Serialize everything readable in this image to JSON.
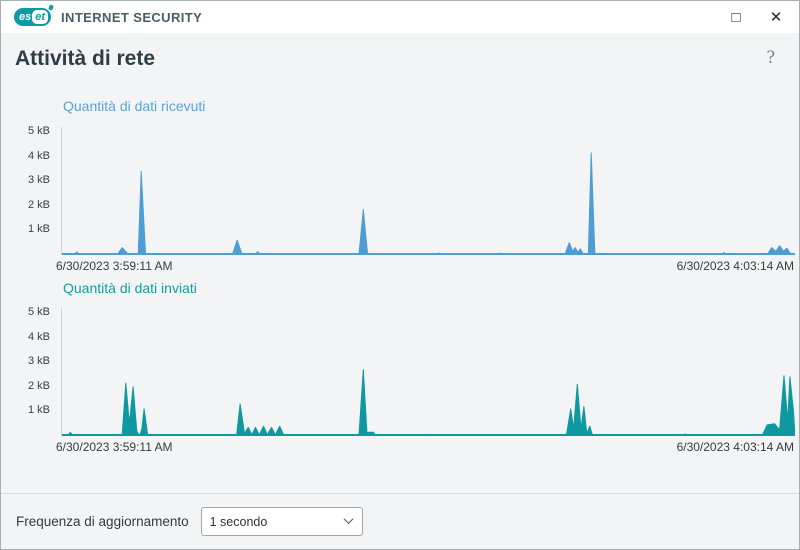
{
  "window": {
    "brand_es": "es",
    "brand_et": "et",
    "product": "INTERNET SECURITY",
    "controls": {
      "maximize": "□",
      "close": "✕"
    }
  },
  "header": {
    "title": "Attività di rete",
    "help": "?"
  },
  "chart_data": [
    {
      "type": "area",
      "title": "Quantità di dati ricevuti",
      "color": "#4e9dd3",
      "title_color": "#57a3d6",
      "unit": "kB",
      "ylim": [
        0,
        5.2
      ],
      "yticks": [
        "1 kB",
        "2 kB",
        "3 kB",
        "4 kB",
        "5 kB"
      ],
      "x_start": "6/30/2023 3:59:11 AM",
      "x_end": "6/30/2023 4:03:14 AM",
      "points": [
        [
          0,
          0
        ],
        [
          0.016,
          0
        ],
        [
          0.02,
          0.12
        ],
        [
          0.025,
          0
        ],
        [
          0.075,
          0
        ],
        [
          0.082,
          0.3
        ],
        [
          0.09,
          0.05
        ],
        [
          0.1,
          0
        ],
        [
          0.104,
          0
        ],
        [
          0.108,
          3.4
        ],
        [
          0.114,
          0
        ],
        [
          0.232,
          0
        ],
        [
          0.239,
          0.6
        ],
        [
          0.246,
          0
        ],
        [
          0.262,
          0
        ],
        [
          0.267,
          0.13
        ],
        [
          0.272,
          0
        ],
        [
          0.405,
          0
        ],
        [
          0.411,
          1.85
        ],
        [
          0.417,
          0
        ],
        [
          0.51,
          0
        ],
        [
          0.514,
          0.08
        ],
        [
          0.52,
          0
        ],
        [
          0.594,
          0
        ],
        [
          0.598,
          0.08
        ],
        [
          0.603,
          0
        ],
        [
          0.686,
          0
        ],
        [
          0.692,
          0.5
        ],
        [
          0.697,
          0.15
        ],
        [
          0.7,
          0.3
        ],
        [
          0.704,
          0.1
        ],
        [
          0.707,
          0.25
        ],
        [
          0.712,
          0
        ],
        [
          0.718,
          0
        ],
        [
          0.722,
          4.15
        ],
        [
          0.727,
          0
        ],
        [
          0.9,
          0
        ],
        [
          0.903,
          0.1
        ],
        [
          0.907,
          0
        ],
        [
          0.962,
          0
        ],
        [
          0.968,
          0.3
        ],
        [
          0.974,
          0.15
        ],
        [
          0.979,
          0.38
        ],
        [
          0.984,
          0.15
        ],
        [
          0.989,
          0.28
        ],
        [
          0.995,
          0
        ],
        [
          1,
          0
        ]
      ]
    },
    {
      "type": "area",
      "title": "Quantità di dati inviati",
      "color": "#0f98a0",
      "title_color": "#169ba3",
      "unit": "kB",
      "ylim": [
        0,
        5.2
      ],
      "yticks": [
        "1 kB",
        "2 kB",
        "3 kB",
        "4 kB",
        "5 kB"
      ],
      "x_start": "6/30/2023 3:59:11 AM",
      "x_end": "6/30/2023 4:03:14 AM",
      "points": [
        [
          0,
          0
        ],
        [
          0.008,
          0
        ],
        [
          0.011,
          0.15
        ],
        [
          0.016,
          0
        ],
        [
          0.082,
          0
        ],
        [
          0.087,
          2.15
        ],
        [
          0.092,
          0.5
        ],
        [
          0.097,
          2.0
        ],
        [
          0.102,
          0.2
        ],
        [
          0.106,
          0
        ],
        [
          0.109,
          0.3
        ],
        [
          0.112,
          1.1
        ],
        [
          0.117,
          0
        ],
        [
          0.238,
          0
        ],
        [
          0.243,
          1.3
        ],
        [
          0.249,
          0.1
        ],
        [
          0.254,
          0.35
        ],
        [
          0.259,
          0.05
        ],
        [
          0.264,
          0.35
        ],
        [
          0.269,
          0.05
        ],
        [
          0.275,
          0.4
        ],
        [
          0.28,
          0.05
        ],
        [
          0.286,
          0.35
        ],
        [
          0.291,
          0.05
        ],
        [
          0.297,
          0.4
        ],
        [
          0.303,
          0
        ],
        [
          0.405,
          0
        ],
        [
          0.411,
          2.7
        ],
        [
          0.416,
          0.15
        ],
        [
          0.425,
          0.15
        ],
        [
          0.428,
          0
        ],
        [
          0.495,
          0
        ],
        [
          0.5,
          0.07
        ],
        [
          0.505,
          0
        ],
        [
          0.688,
          0
        ],
        [
          0.694,
          1.1
        ],
        [
          0.698,
          0.3
        ],
        [
          0.703,
          2.1
        ],
        [
          0.708,
          0.3
        ],
        [
          0.712,
          1.2
        ],
        [
          0.716,
          0.1
        ],
        [
          0.72,
          0.4
        ],
        [
          0.724,
          0
        ],
        [
          0.845,
          0
        ],
        [
          0.85,
          0.08
        ],
        [
          0.856,
          0
        ],
        [
          0.955,
          0
        ],
        [
          0.962,
          0.45
        ],
        [
          0.972,
          0.5
        ],
        [
          0.979,
          0.25
        ],
        [
          0.985,
          2.45
        ],
        [
          0.99,
          0.6
        ],
        [
          0.993,
          2.4
        ],
        [
          0.998,
          1.0
        ],
        [
          1,
          0
        ]
      ]
    }
  ],
  "footer": {
    "label": "Frequenza di aggiornamento",
    "dropdown_value": "1 secondo"
  }
}
